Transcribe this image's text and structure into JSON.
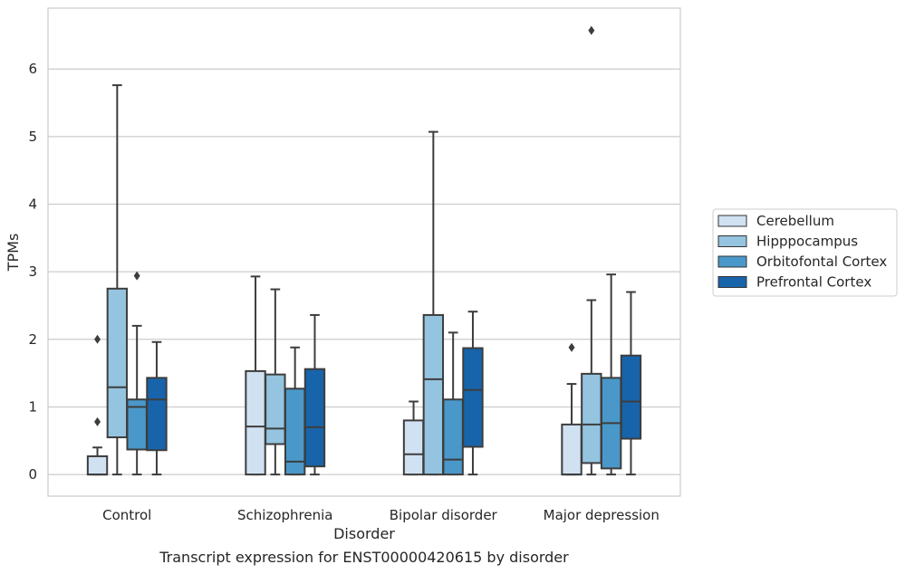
{
  "caption": "Transcript expression for ENST00000420615 by disorder",
  "chart_data": {
    "type": "boxplot",
    "xlabel": "Disorder",
    "ylabel": "TPMs",
    "ylim": [
      -0.32,
      6.9
    ],
    "yticks": [
      0,
      1,
      2,
      3,
      4,
      5,
      6
    ],
    "grid": true,
    "legend_position": "right",
    "categories": [
      "Control",
      "Schizophrenia",
      "Bipolar disorder",
      "Major depression"
    ],
    "series": [
      {
        "name": "Cerebellum",
        "color": "#d0e1f2",
        "boxes": [
          {
            "whisker_low": 0,
            "q1": 0,
            "median": 0,
            "q3": 0.27,
            "whisker_high": 0.4,
            "outliers": [
              0.78,
              2.0
            ]
          },
          {
            "whisker_low": 0,
            "q1": 0,
            "median": 0.71,
            "q3": 1.53,
            "whisker_high": 2.93,
            "outliers": []
          },
          {
            "whisker_low": 0,
            "q1": 0,
            "median": 0.3,
            "q3": 0.8,
            "whisker_high": 1.08,
            "outliers": []
          },
          {
            "whisker_low": 0,
            "q1": 0,
            "median": 0,
            "q3": 0.74,
            "whisker_high": 1.34,
            "outliers": [
              1.88
            ]
          }
        ]
      },
      {
        "name": "Hipppocampus",
        "color": "#94c4df",
        "boxes": [
          {
            "whisker_low": 0,
            "q1": 0.55,
            "median": 1.29,
            "q3": 2.75,
            "whisker_high": 5.76,
            "outliers": []
          },
          {
            "whisker_low": 0,
            "q1": 0.45,
            "median": 0.68,
            "q3": 1.48,
            "whisker_high": 2.74,
            "outliers": []
          },
          {
            "whisker_low": 0,
            "q1": 0,
            "median": 1.41,
            "q3": 2.36,
            "whisker_high": 5.07,
            "outliers": []
          },
          {
            "whisker_low": 0,
            "q1": 0.17,
            "median": 0.74,
            "q3": 1.49,
            "whisker_high": 2.58,
            "outliers": [
              6.57
            ]
          }
        ]
      },
      {
        "name": "Orbitofontal Cortex",
        "color": "#4a98c9",
        "boxes": [
          {
            "whisker_low": 0,
            "q1": 0.37,
            "median": 1.0,
            "q3": 1.11,
            "whisker_high": 2.2,
            "outliers": [
              2.94
            ]
          },
          {
            "whisker_low": 0,
            "q1": 0,
            "median": 0.19,
            "q3": 1.27,
            "whisker_high": 1.88,
            "outliers": []
          },
          {
            "whisker_low": 0,
            "q1": 0,
            "median": 0.22,
            "q3": 1.11,
            "whisker_high": 2.1,
            "outliers": []
          },
          {
            "whisker_low": 0,
            "q1": 0.09,
            "median": 0.76,
            "q3": 1.43,
            "whisker_high": 2.96,
            "outliers": []
          }
        ]
      },
      {
        "name": "Prefrontal Cortex",
        "color": "#1764ab",
        "boxes": [
          {
            "whisker_low": 0,
            "q1": 0.36,
            "median": 1.11,
            "q3": 1.43,
            "whisker_high": 1.96,
            "outliers": []
          },
          {
            "whisker_low": 0,
            "q1": 0.12,
            "median": 0.7,
            "q3": 1.56,
            "whisker_high": 2.36,
            "outliers": []
          },
          {
            "whisker_low": 0,
            "q1": 0.41,
            "median": 1.25,
            "q3": 1.87,
            "whisker_high": 2.41,
            "outliers": []
          },
          {
            "whisker_low": 0,
            "q1": 0.53,
            "median": 1.08,
            "q3": 1.76,
            "whisker_high": 2.7,
            "outliers": []
          }
        ]
      }
    ]
  }
}
